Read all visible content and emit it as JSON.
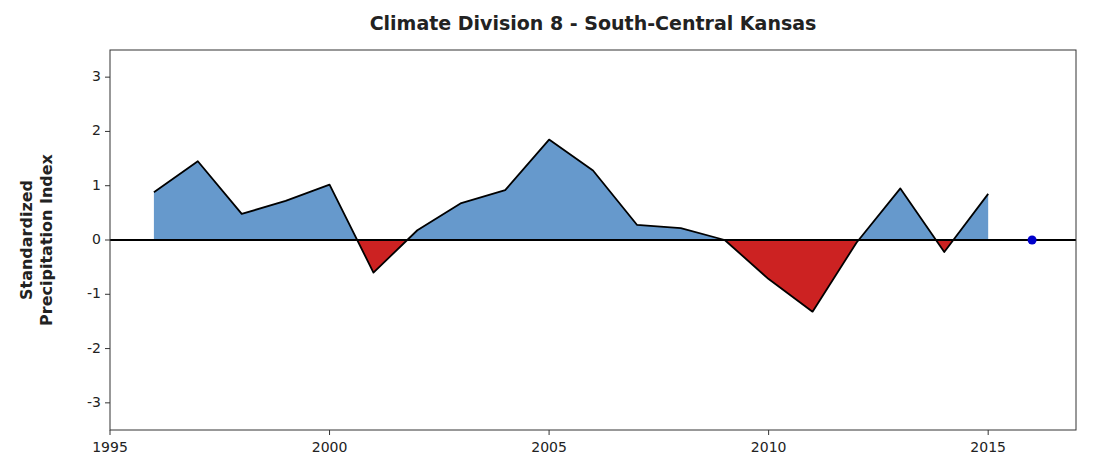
{
  "chart_data": {
    "type": "area",
    "title": "Climate Division 8 - South-Central Kansas",
    "y_label": "Standardized\nPrecipitation Index",
    "x": [
      1996,
      1997,
      1998,
      1999,
      2000,
      2001,
      2002,
      2003,
      2004,
      2005,
      2006,
      2007,
      2008,
      2009,
      2010,
      2011,
      2012,
      2013,
      2014,
      2015,
      2016
    ],
    "series": [
      {
        "type": "area",
        "color": "#000000",
        "colors": [
          "#6699CC",
          "#CC2222"
        ],
        "values": [
          0.88,
          1.45,
          0.48,
          0.72,
          1.02,
          -0.6,
          0.18,
          0.68,
          0.92,
          1.85,
          1.28,
          0.28,
          0.22,
          0.0,
          -0.72,
          -1.32,
          -0.05,
          0.95,
          -0.22,
          0.85,
          null
        ]
      },
      {
        "type": "scatter",
        "color": "#0000CC",
        "values": [
          null,
          null,
          null,
          null,
          null,
          null,
          null,
          null,
          null,
          null,
          null,
          null,
          null,
          null,
          null,
          null,
          null,
          null,
          null,
          null,
          0.0
        ]
      }
    ],
    "xlim": [
      1995,
      2017
    ],
    "ylim": [
      -3.5,
      3.5
    ],
    "xticks": [
      1995,
      2000,
      2005,
      2010,
      2015
    ],
    "yticks": [
      -3,
      -2,
      -1,
      0,
      1,
      2,
      3
    ],
    "grid": false
  }
}
